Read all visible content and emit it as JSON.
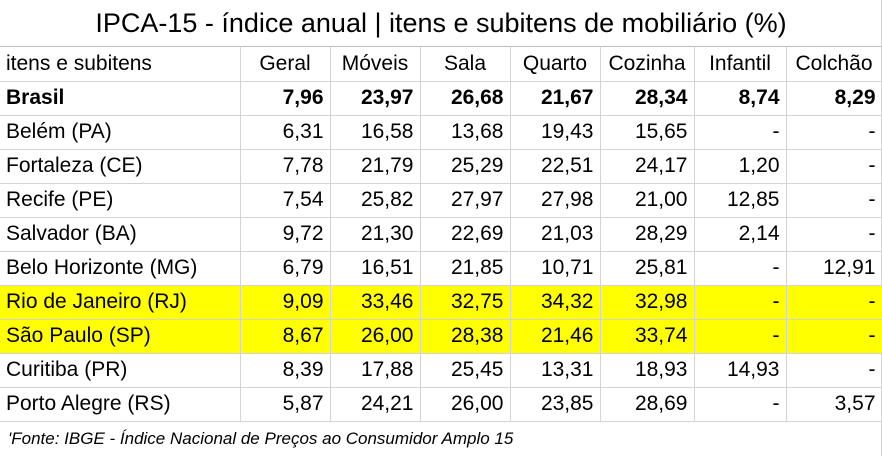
{
  "title": "IPCA-15 - índice anual | itens e subitens de mobiliário (%)",
  "table": {
    "columns": [
      "itens e subitens",
      "Geral",
      "Móveis",
      "Sala",
      "Quarto",
      "Cozinha",
      "Infantil",
      "Colchão"
    ],
    "rows": [
      {
        "name": "Brasil",
        "values": [
          "7,96",
          "23,97",
          "26,68",
          "21,67",
          "28,34",
          "8,74",
          "8,29"
        ],
        "bold": true,
        "highlight": false
      },
      {
        "name": "Belém (PA)",
        "values": [
          "6,31",
          "16,58",
          "13,68",
          "19,43",
          "15,65",
          "-",
          "-"
        ],
        "bold": false,
        "highlight": false
      },
      {
        "name": "Fortaleza (CE)",
        "values": [
          "7,78",
          "21,79",
          "25,29",
          "22,51",
          "24,17",
          "1,20",
          "-"
        ],
        "bold": false,
        "highlight": false
      },
      {
        "name": "Recife (PE)",
        "values": [
          "7,54",
          "25,82",
          "27,97",
          "27,98",
          "21,00",
          "12,85",
          "-"
        ],
        "bold": false,
        "highlight": false
      },
      {
        "name": "Salvador (BA)",
        "values": [
          "9,72",
          "21,30",
          "22,69",
          "21,03",
          "28,29",
          "2,14",
          "-"
        ],
        "bold": false,
        "highlight": false
      },
      {
        "name": "Belo Horizonte (MG)",
        "values": [
          "6,79",
          "16,51",
          "21,85",
          "10,71",
          "25,81",
          "-",
          "12,91"
        ],
        "bold": false,
        "highlight": false
      },
      {
        "name": "Rio de Janeiro (RJ)",
        "values": [
          "9,09",
          "33,46",
          "32,75",
          "34,32",
          "32,98",
          "-",
          "-"
        ],
        "bold": false,
        "highlight": true
      },
      {
        "name": "São Paulo (SP)",
        "values": [
          "8,67",
          "26,00",
          "28,38",
          "21,46",
          "33,74",
          "-",
          "-"
        ],
        "bold": false,
        "highlight": true
      },
      {
        "name": "Curitiba (PR)",
        "values": [
          "8,39",
          "17,88",
          "25,45",
          "13,31",
          "18,93",
          "14,93",
          "-"
        ],
        "bold": false,
        "highlight": false
      },
      {
        "name": "Porto Alegre (RS)",
        "values": [
          "5,87",
          "24,21",
          "26,00",
          "23,85",
          "28,69",
          "-",
          "3,57"
        ],
        "bold": false,
        "highlight": false
      }
    ]
  },
  "source": "'Fonte: IBGE - Índice Nacional de Preços ao Consumidor Amplo 15",
  "colors": {
    "highlight": "#ffff00",
    "grid": "#d4d4d4"
  }
}
